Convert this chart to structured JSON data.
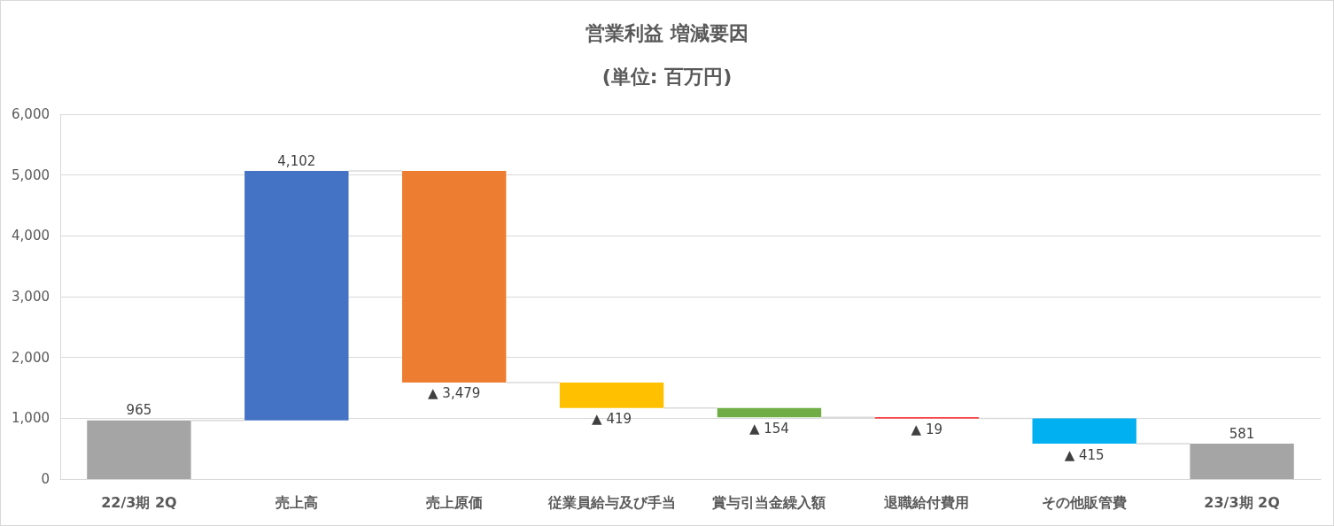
{
  "chart_data": {
    "type": "bar",
    "title": "営業利益 増減要因",
    "subtitle": "(単位: 百万円)",
    "categories": [
      "22/3期 2Q",
      "売上高",
      "売上原価",
      "従業員給与及び手当",
      "賞与引当金繰入額",
      "退職給付費用",
      "その他販管費",
      "23/3期 2Q"
    ],
    "values": [
      965,
      4102,
      -3479,
      -419,
      -154,
      -19,
      -415,
      581
    ],
    "base": [
      0,
      965,
      5067,
      1588,
      1169,
      1015,
      996,
      0
    ],
    "colors": [
      "#a5a5a5",
      "#4472c4",
      "#ed7d31",
      "#ffc000",
      "#70ad47",
      "#ff0000",
      "#00b0f0",
      "#a5a5a5"
    ],
    "value_labels": [
      "965",
      "4,102",
      "▲ 3,479",
      "▲ 419",
      "▲ 154",
      "▲ 19",
      "▲ 415",
      "581"
    ],
    "ylim": [
      0,
      6000
    ],
    "yticks": [
      0,
      {
        "value": 1000,
        "label": "1,000"
      },
      {
        "value": 2000,
        "label": "2,000"
      },
      {
        "value": 3000,
        "label": "3,000"
      },
      {
        "value": 4000,
        "label": "4,000"
      },
      {
        "value": 5000,
        "label": "5,000"
      },
      {
        "value": 6000,
        "label": "6,000"
      }
    ],
    "grid": "y"
  }
}
